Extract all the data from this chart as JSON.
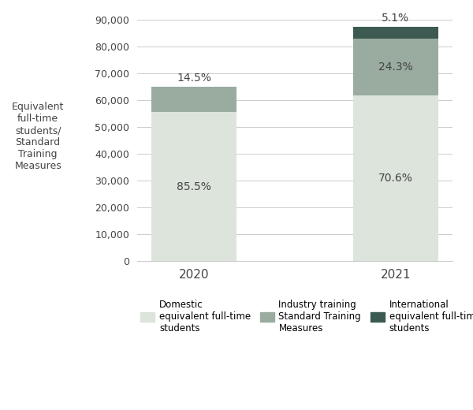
{
  "years": [
    "2020",
    "2021"
  ],
  "domestic": [
    55575,
    61775
  ],
  "industry": [
    9425,
    21250
  ],
  "international": [
    0,
    4475
  ],
  "domestic_pct": [
    "85.5%",
    "70.6%"
  ],
  "industry_pct": [
    "14.5%",
    "24.3%"
  ],
  "international_pct": [
    "",
    "5.1%"
  ],
  "color_domestic": "#dce4dc",
  "color_industry": "#9aaba0",
  "color_international": "#3d5a52",
  "ylabel": "Equivalent\nfull-time\nstudents/\nStandard\nTraining\nMeasures",
  "ylim": [
    0,
    93000
  ],
  "yticks": [
    0,
    10000,
    20000,
    30000,
    40000,
    50000,
    60000,
    70000,
    80000,
    90000
  ],
  "legend_domestic": "Domestic\nequivalent full-time\nstudents",
  "legend_industry": "Industry training\nStandard Training\nMeasures",
  "legend_international": "International\nequivalent full-time\nstudents",
  "bar_width": 0.42,
  "background_color": "#ffffff",
  "grid_color": "#cccccc",
  "text_color": "#444444"
}
